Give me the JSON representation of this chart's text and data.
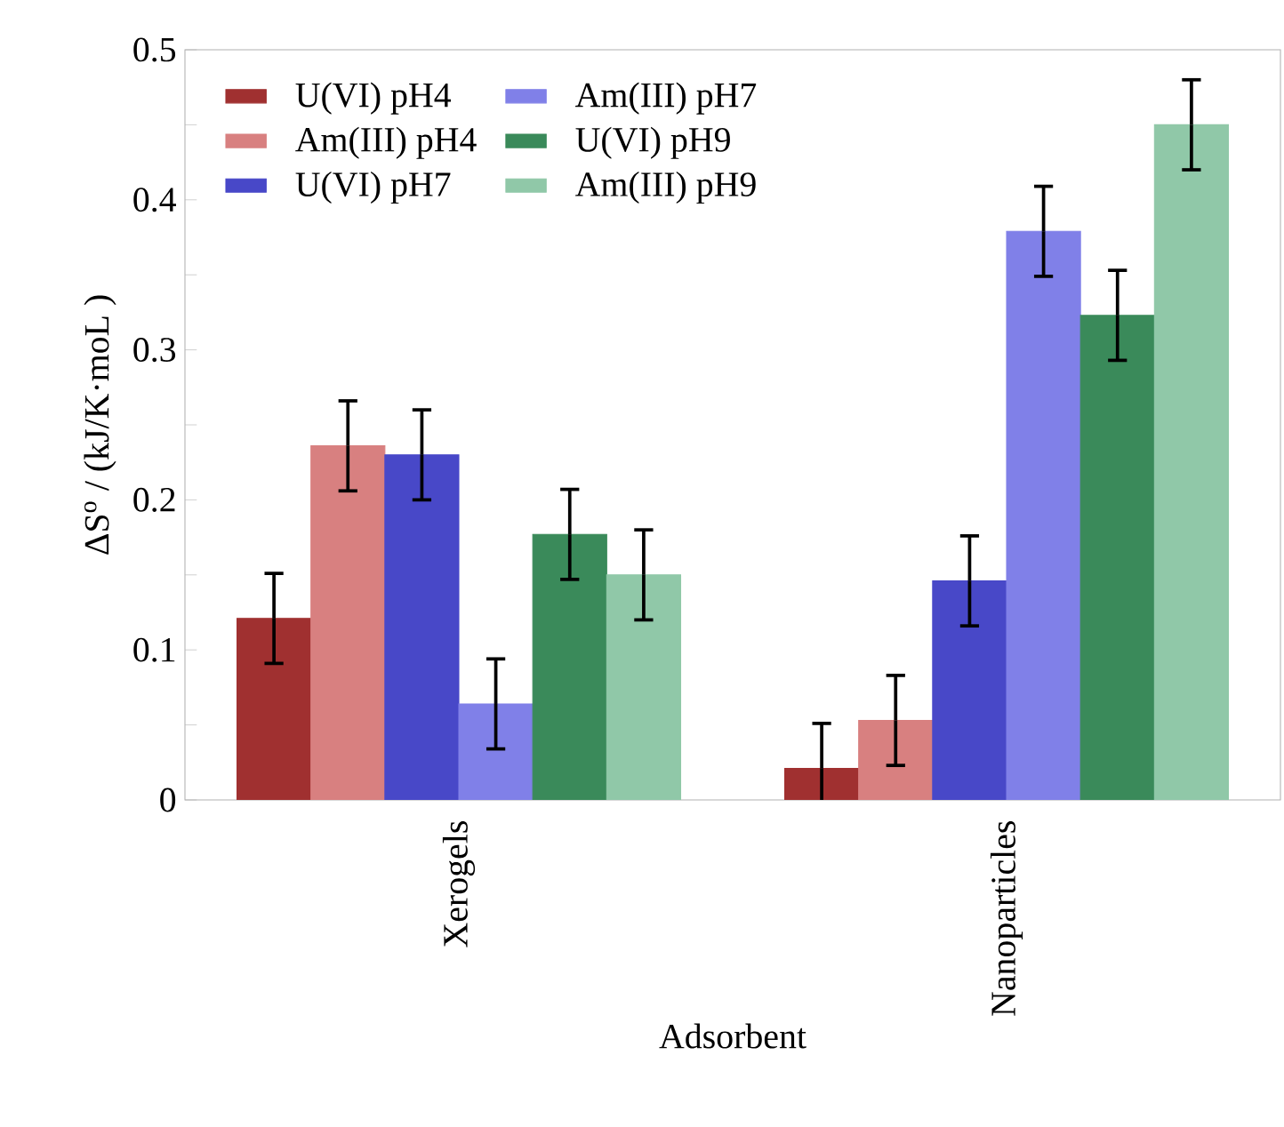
{
  "chart_data": {
    "type": "bar",
    "xlabel": "Adsorbent",
    "ylabel": "ΔS$^{o}$ / (kJ/K·moL )",
    "categories": [
      "Xerogels",
      "Nanoparticles"
    ],
    "series": [
      {
        "name": "U(VI) pH4",
        "color": "#a03030",
        "values": [
          0.121,
          0.021
        ],
        "errors": [
          0.03,
          0.03
        ]
      },
      {
        "name": "Am(III) pH4",
        "color": "#d88080",
        "values": [
          0.236,
          0.053
        ],
        "errors": [
          0.03,
          0.03
        ]
      },
      {
        "name": "U(VI) pH7",
        "color": "#4848c8",
        "values": [
          0.23,
          0.146
        ],
        "errors": [
          0.03,
          0.03
        ]
      },
      {
        "name": "Am(III) pH7",
        "color": "#8080e8",
        "values": [
          0.064,
          0.379
        ],
        "errors": [
          0.03,
          0.03
        ]
      },
      {
        "name": "U(VI) pH9",
        "color": "#3a8a5a",
        "values": [
          0.177,
          0.323
        ],
        "errors": [
          0.03,
          0.03
        ]
      },
      {
        "name": "Am(III) pH9",
        "color": "#90c8a8",
        "values": [
          0.15,
          0.45
        ],
        "errors": [
          0.03,
          0.03
        ]
      }
    ],
    "ylim": [
      0,
      0.5
    ],
    "yticks": [
      0,
      {
        "value": 0.05,
        "label": null
      },
      0.1,
      {
        "value": 0.15,
        "label": null
      },
      0.2,
      {
        "value": 0.25,
        "label": null
      },
      0.3,
      {
        "value": 0.35,
        "label": null
      },
      0.4,
      {
        "value": 0.45,
        "label": null
      },
      0.5
    ],
    "legend": "top left",
    "grid": false
  }
}
